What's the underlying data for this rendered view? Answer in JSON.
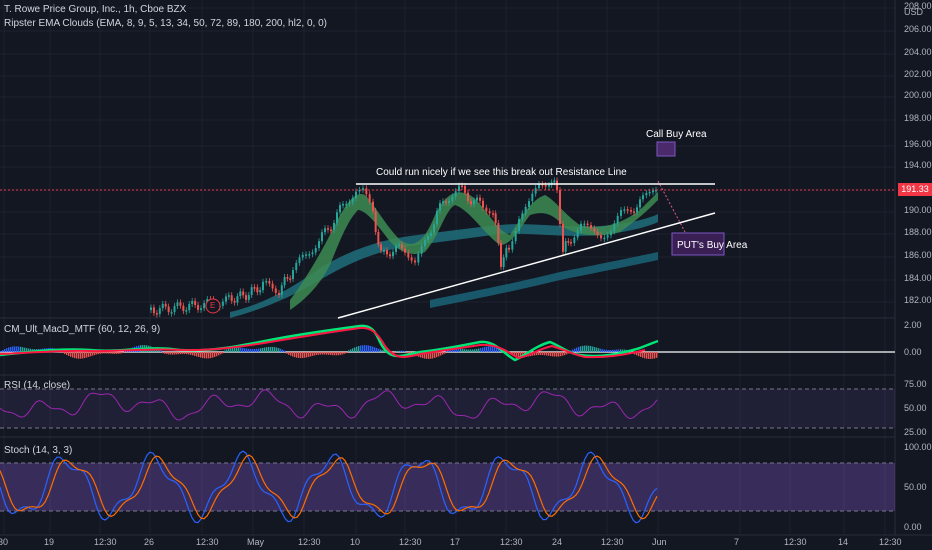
{
  "header": {
    "symbol_line": "T. Rowe Price Group, Inc., 1h, Cboe BZX",
    "indicator_line": "Ripster EMA Clouds (EMA, 8, 9, 5, 13, 34, 50, 72, 89, 180, 200, hl2, 0, 0)",
    "currency": "USD"
  },
  "main_pane": {
    "price_ticks": [
      "208.00",
      "206.00",
      "204.00",
      "202.00",
      "200.00",
      "198.00",
      "196.00",
      "194.00",
      "192.00",
      "190.00",
      "188.00",
      "186.00",
      "184.00",
      "182.00"
    ],
    "current_price": "191.33",
    "earnings_marker": "E",
    "annotations": {
      "resistance_note": "Could run nicely if we see this break out Resistance Line",
      "call_area": "Call Buy Area",
      "put_area": "PUT's Buy Area"
    }
  },
  "macd_pane": {
    "title": "CM_Ult_MacD_MTF (60, 12, 26, 9)",
    "ticks": [
      "2.00",
      "0.00"
    ]
  },
  "rsi_pane": {
    "title": "RSI (14, close)",
    "ticks": [
      "75.00",
      "50.00",
      "25.00"
    ]
  },
  "stoch_pane": {
    "title": "Stoch (14, 3, 3)",
    "ticks": [
      "100.00",
      "50.00",
      "0.00"
    ]
  },
  "time_axis": {
    "labels": [
      "30",
      "19",
      "12:30",
      "26",
      "12:30",
      "May",
      "12:30",
      "10",
      "12:30",
      "17",
      "12:30",
      "24",
      "12:30",
      "Jun",
      "7",
      "12:30",
      "14",
      "12:30"
    ]
  },
  "colors": {
    "background": "#131722",
    "up": "#26a69a",
    "down": "#ef5350",
    "cloud_green": "#3d8b52",
    "cloud_teal": "#2a7f8a",
    "purple": "#7e57c2",
    "macd_green": "#00e676",
    "macd_red": "#ff1744"
  }
}
